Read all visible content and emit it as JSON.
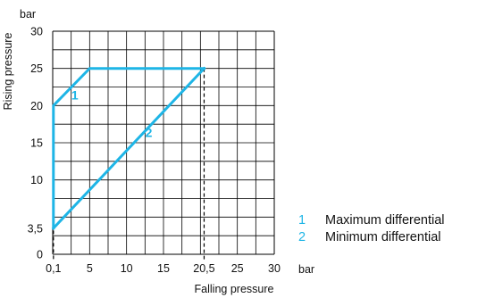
{
  "chart_data": {
    "type": "line",
    "xlabel": "Falling pressure",
    "ylabel": "Rising pressure",
    "x_unit": "bar",
    "y_unit": "bar",
    "xlim": [
      0,
      30
    ],
    "ylim": [
      0,
      30
    ],
    "grid": true,
    "grid_step": 2.5,
    "x_ticks": [
      "0,1",
      "5",
      "10",
      "15",
      "20,5",
      "25",
      "30"
    ],
    "x_tick_values": [
      0.1,
      5,
      10,
      15,
      20.5,
      25,
      30
    ],
    "y_ticks": [
      "0",
      "3,5",
      "10",
      "15",
      "20",
      "25",
      "30"
    ],
    "y_tick_values": [
      0,
      3.5,
      10,
      15,
      20,
      25,
      30
    ],
    "series": [
      {
        "name": "Maximum differential",
        "label": "1",
        "x": [
          0.1,
          0.1,
          5,
          20.5
        ],
        "y": [
          3.5,
          20,
          25,
          25
        ]
      },
      {
        "name": "Minimum differential",
        "label": "2",
        "x": [
          0.1,
          20.5
        ],
        "y": [
          3.5,
          25
        ]
      }
    ],
    "reference_lines_x": [
      0.1,
      20.5
    ],
    "legend": [
      {
        "number": "1",
        "text": "Maximum differential"
      },
      {
        "number": "2",
        "text": "Minimum differential"
      }
    ],
    "legend_position": "bottom-right",
    "colors": {
      "series": "#1eb5e6",
      "grid": "#000000",
      "text": "#111111"
    }
  }
}
